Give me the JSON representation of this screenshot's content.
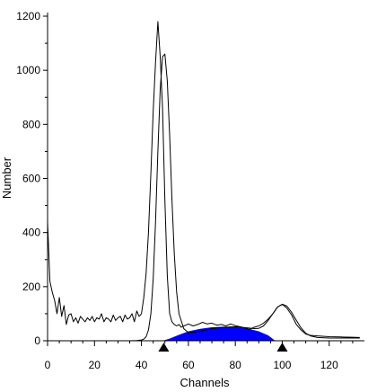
{
  "chart_data": {
    "type": "line",
    "xlabel": "Channels",
    "ylabel": "Number",
    "xlim": [
      0,
      135
    ],
    "ylim": [
      0,
      1200
    ],
    "x_ticks": [
      0,
      20,
      40,
      60,
      80,
      100,
      120
    ],
    "y_ticks": [
      0,
      200,
      400,
      600,
      800,
      1000,
      1200
    ],
    "grid": false,
    "colors": {
      "line": "#000000",
      "fill": "#0000ff",
      "marker": "#000000"
    },
    "series": [
      {
        "role": "histogram",
        "x": [
          0,
          0.5,
          1,
          2,
          3,
          4,
          5,
          6,
          7,
          8,
          9,
          10,
          11,
          12,
          13,
          14,
          15,
          16,
          17,
          18,
          19,
          20,
          21,
          22,
          23,
          24,
          25,
          26,
          27,
          28,
          29,
          30,
          31,
          32,
          33,
          34,
          35,
          36,
          37,
          38,
          39,
          40,
          41,
          42,
          43,
          44,
          45,
          46,
          47,
          48,
          49,
          50,
          51,
          52,
          53,
          54,
          55,
          56,
          57,
          58,
          59,
          60,
          62,
          64,
          66,
          68,
          70,
          72,
          74,
          76,
          78,
          80,
          82,
          84,
          86,
          88,
          90,
          92,
          94,
          96,
          98,
          100,
          102,
          104,
          106,
          108,
          110,
          112,
          115,
          120,
          125,
          130,
          133
        ],
        "y": [
          440,
          330,
          220,
          180,
          150,
          100,
          160,
          90,
          130,
          60,
          95,
          100,
          70,
          85,
          65,
          90,
          80,
          70,
          85,
          75,
          90,
          70,
          85,
          80,
          100,
          70,
          85,
          80,
          70,
          95,
          75,
          85,
          90,
          70,
          95,
          80,
          85,
          100,
          70,
          110,
          90,
          100,
          160,
          250,
          400,
          620,
          850,
          1030,
          1180,
          1050,
          860,
          520,
          240,
          100,
          70,
          60,
          55,
          60,
          50,
          55,
          58,
          62,
          55,
          60,
          68,
          62,
          65,
          58,
          60,
          55,
          62,
          56,
          52,
          48,
          42,
          50,
          55,
          65,
          80,
          100,
          125,
          135,
          120,
          95,
          60,
          40,
          25,
          20,
          18,
          15,
          14,
          13,
          12
        ]
      },
      {
        "role": "fit",
        "x": [
          0,
          10,
          20,
          30,
          35,
          38,
          40,
          41,
          42,
          43,
          44,
          45,
          46,
          47,
          48,
          49,
          50,
          51,
          52,
          53,
          54,
          55,
          56,
          58,
          60,
          65,
          70,
          75,
          80,
          85,
          88,
          90,
          92,
          94,
          96,
          98,
          100,
          102,
          104,
          106,
          108,
          110,
          112,
          115,
          120,
          125,
          130,
          133
        ],
        "y": [
          0,
          0,
          0,
          0,
          0,
          1,
          3,
          6,
          15,
          40,
          100,
          230,
          440,
          700,
          930,
          1050,
          1060,
          960,
          760,
          520,
          320,
          180,
          100,
          45,
          30,
          35,
          45,
          50,
          52,
          48,
          45,
          46,
          55,
          75,
          100,
          125,
          135,
          128,
          105,
          75,
          48,
          28,
          18,
          12,
          10,
          10,
          10,
          10
        ]
      }
    ],
    "filled_region": {
      "x": [
        49,
        52,
        56,
        60,
        65,
        70,
        75,
        80,
        85,
        90,
        94,
        97
      ],
      "y": [
        0,
        8,
        22,
        35,
        44,
        50,
        52,
        51,
        46,
        35,
        20,
        0
      ]
    },
    "markers": [
      {
        "shape": "triangle-up",
        "x": 49.5
      },
      {
        "shape": "triangle-up",
        "x": 100
      }
    ]
  }
}
